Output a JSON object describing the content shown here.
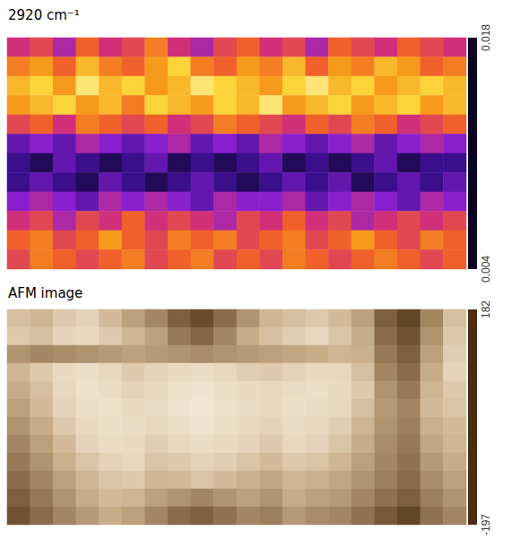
{
  "chart_data": [
    {
      "type": "heatmap",
      "title": "2920 cm⁻¹",
      "tick_labels": false,
      "colorbar": {
        "range": [
          0.004,
          0.018
        ],
        "ticks": [
          0.004,
          0.018
        ]
      },
      "values": [
        [
          0.01,
          0.011,
          0.009,
          0.012,
          0.01,
          0.011,
          0.013,
          0.01,
          0.009,
          0.011,
          0.012,
          0.01,
          0.011,
          0.009,
          0.012,
          0.011,
          0.01,
          0.012,
          0.011,
          0.01
        ],
        [
          0.013,
          0.014,
          0.012,
          0.015,
          0.013,
          0.012,
          0.014,
          0.016,
          0.013,
          0.012,
          0.014,
          0.013,
          0.015,
          0.012,
          0.014,
          0.013,
          0.015,
          0.014,
          0.012,
          0.013
        ],
        [
          0.015,
          0.016,
          0.014,
          0.017,
          0.015,
          0.016,
          0.014,
          0.015,
          0.017,
          0.016,
          0.015,
          0.014,
          0.016,
          0.017,
          0.015,
          0.016,
          0.014,
          0.015,
          0.016,
          0.015
        ],
        [
          0.014,
          0.015,
          0.016,
          0.014,
          0.015,
          0.013,
          0.016,
          0.015,
          0.014,
          0.016,
          0.015,
          0.017,
          0.014,
          0.015,
          0.016,
          0.014,
          0.015,
          0.016,
          0.014,
          0.015
        ],
        [
          0.011,
          0.012,
          0.01,
          0.013,
          0.012,
          0.011,
          0.012,
          0.01,
          0.011,
          0.013,
          0.012,
          0.011,
          0.01,
          0.012,
          0.011,
          0.013,
          0.012,
          0.01,
          0.011,
          0.012
        ],
        [
          0.007,
          0.008,
          0.007,
          0.009,
          0.008,
          0.007,
          0.008,
          0.009,
          0.007,
          0.008,
          0.007,
          0.009,
          0.008,
          0.007,
          0.008,
          0.009,
          0.007,
          0.008,
          0.009,
          0.008
        ],
        [
          0.006,
          0.005,
          0.007,
          0.006,
          0.005,
          0.006,
          0.007,
          0.005,
          0.006,
          0.005,
          0.006,
          0.007,
          0.005,
          0.006,
          0.005,
          0.006,
          0.007,
          0.005,
          0.006,
          0.006
        ],
        [
          0.006,
          0.007,
          0.006,
          0.005,
          0.007,
          0.006,
          0.005,
          0.006,
          0.007,
          0.006,
          0.005,
          0.006,
          0.007,
          0.006,
          0.007,
          0.005,
          0.006,
          0.007,
          0.006,
          0.007
        ],
        [
          0.008,
          0.009,
          0.008,
          0.007,
          0.009,
          0.008,
          0.009,
          0.008,
          0.007,
          0.009,
          0.008,
          0.008,
          0.009,
          0.007,
          0.008,
          0.009,
          0.008,
          0.007,
          0.009,
          0.008
        ],
        [
          0.01,
          0.011,
          0.009,
          0.011,
          0.01,
          0.012,
          0.01,
          0.011,
          0.01,
          0.009,
          0.011,
          0.01,
          0.012,
          0.01,
          0.011,
          0.009,
          0.01,
          0.011,
          0.01,
          0.011
        ],
        [
          0.012,
          0.013,
          0.011,
          0.012,
          0.014,
          0.012,
          0.011,
          0.013,
          0.012,
          0.013,
          0.011,
          0.012,
          0.013,
          0.011,
          0.012,
          0.014,
          0.012,
          0.011,
          0.013,
          0.012
        ],
        [
          0.011,
          0.013,
          0.012,
          0.011,
          0.012,
          0.013,
          0.011,
          0.012,
          0.013,
          0.011,
          0.012,
          0.011,
          0.013,
          0.012,
          0.011,
          0.012,
          0.013,
          0.012,
          0.011,
          0.012
        ]
      ]
    },
    {
      "type": "heatmap",
      "title": "AFM image",
      "tick_labels": false,
      "colorbar": {
        "range": [
          -197,
          182
        ],
        "ticks": [
          -197,
          182
        ]
      },
      "values": [
        [
          40,
          20,
          60,
          80,
          30,
          -20,
          -60,
          -120,
          -150,
          -100,
          -40,
          20,
          40,
          60,
          30,
          -20,
          -120,
          -160,
          -60,
          40
        ],
        [
          60,
          40,
          80,
          100,
          60,
          20,
          -20,
          -80,
          -110,
          -60,
          0,
          40,
          70,
          90,
          50,
          0,
          -100,
          -140,
          -40,
          60
        ],
        [
          -40,
          -60,
          -50,
          -40,
          -30,
          -20,
          -30,
          -40,
          -50,
          -40,
          -30,
          -20,
          -10,
          0,
          20,
          10,
          -80,
          -120,
          -20,
          70
        ],
        [
          20,
          60,
          100,
          120,
          90,
          60,
          80,
          100,
          110,
          90,
          70,
          60,
          80,
          100,
          90,
          40,
          -60,
          -100,
          0,
          80
        ],
        [
          0,
          40,
          90,
          130,
          110,
          80,
          100,
          130,
          140,
          120,
          100,
          90,
          110,
          120,
          100,
          60,
          -40,
          -80,
          20,
          60
        ],
        [
          -20,
          30,
          80,
          120,
          130,
          100,
          110,
          140,
          150,
          130,
          110,
          100,
          120,
          110,
          90,
          40,
          -30,
          -60,
          30,
          50
        ],
        [
          -40,
          0,
          60,
          100,
          120,
          110,
          90,
          120,
          140,
          120,
          100,
          80,
          110,
          100,
          70,
          20,
          -40,
          -70,
          10,
          30
        ],
        [
          -60,
          -20,
          30,
          80,
          110,
          100,
          70,
          90,
          110,
          100,
          80,
          60,
          90,
          80,
          50,
          0,
          -50,
          -80,
          -10,
          20
        ],
        [
          -80,
          -40,
          10,
          50,
          80,
          90,
          50,
          60,
          80,
          70,
          50,
          30,
          60,
          50,
          20,
          -20,
          -60,
          -90,
          -30,
          0
        ],
        [
          -100,
          -60,
          -20,
          20,
          50,
          60,
          20,
          30,
          50,
          30,
          10,
          -10,
          20,
          10,
          -10,
          -40,
          -70,
          -100,
          -50,
          -20
        ],
        [
          -120,
          -80,
          -40,
          0,
          30,
          20,
          -20,
          -40,
          -60,
          -40,
          -20,
          -40,
          0,
          -20,
          -30,
          -60,
          -90,
          -120,
          -70,
          -40
        ],
        [
          -140,
          -100,
          -60,
          -30,
          0,
          -20,
          -60,
          -100,
          -120,
          -90,
          -60,
          -70,
          -30,
          -50,
          -60,
          -90,
          -130,
          -160,
          -90,
          -60
        ]
      ]
    }
  ]
}
